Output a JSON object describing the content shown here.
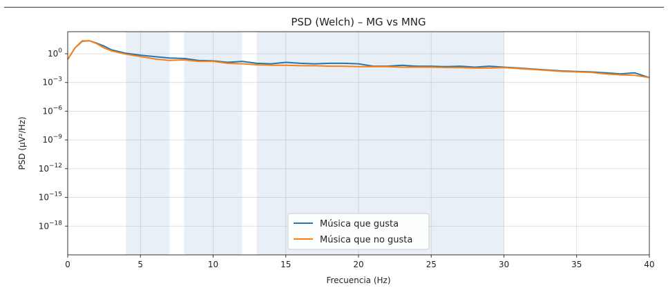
{
  "chart_data": {
    "type": "line",
    "title": "PSD (Welch) – MG vs MNG",
    "xlabel": "Frecuencia (Hz)",
    "ylabel": "PSD (μV²/Hz)",
    "xlim": [
      0,
      40
    ],
    "ylim_log10": [
      -21,
      2.3
    ],
    "y_scale": "log",
    "grid": true,
    "legend_position": "lower-center",
    "x_ticks": [
      {
        "value": 0,
        "label": "0"
      },
      {
        "value": 5,
        "label": "5"
      },
      {
        "value": 10,
        "label": "10"
      },
      {
        "value": 15,
        "label": "15"
      },
      {
        "value": 20,
        "label": "20"
      },
      {
        "value": 25,
        "label": "25"
      },
      {
        "value": 30,
        "label": "30"
      },
      {
        "value": 35,
        "label": "35"
      },
      {
        "value": 40,
        "label": "40"
      }
    ],
    "y_ticks": [
      {
        "exp": 0,
        "base": "10",
        "sup": "0"
      },
      {
        "exp": -3,
        "base": "10",
        "sup": "−3"
      },
      {
        "exp": -6,
        "base": "10",
        "sup": "−6"
      },
      {
        "exp": -9,
        "base": "10",
        "sup": "−9"
      },
      {
        "exp": -12,
        "base": "10",
        "sup": "−12"
      },
      {
        "exp": -15,
        "base": "10",
        "sup": "−15"
      },
      {
        "exp": -18,
        "base": "10",
        "sup": "−18"
      }
    ],
    "shaded_bands": [
      {
        "x0": 4,
        "x1": 7
      },
      {
        "x0": 8,
        "x1": 12
      },
      {
        "x0": 13,
        "x1": 30
      }
    ],
    "series": [
      {
        "name": "Música que gusta",
        "color": "#1f77b4",
        "x": [
          0,
          0.5,
          1,
          1.5,
          2,
          2.5,
          3,
          4,
          5,
          6,
          7,
          8,
          9,
          10,
          11,
          12,
          13,
          14,
          15,
          16,
          17,
          18,
          19,
          20,
          21,
          22,
          23,
          24,
          25,
          26,
          27,
          28,
          29,
          30,
          31,
          32,
          33,
          34,
          35,
          36,
          37,
          38,
          39,
          40
        ],
        "y_log10": [
          -0.6,
          0.6,
          1.3,
          1.35,
          1.1,
          0.8,
          0.4,
          0.05,
          -0.15,
          -0.3,
          -0.45,
          -0.5,
          -0.7,
          -0.75,
          -0.9,
          -0.8,
          -1.0,
          -1.05,
          -0.9,
          -1.0,
          -1.05,
          -1.0,
          -1.0,
          -1.05,
          -1.3,
          -1.3,
          -1.2,
          -1.3,
          -1.3,
          -1.35,
          -1.3,
          -1.4,
          -1.3,
          -1.4,
          -1.5,
          -1.6,
          -1.7,
          -1.8,
          -1.85,
          -1.9,
          -2.0,
          -2.1,
          -2.0,
          -2.5
        ]
      },
      {
        "name": "Música que no gusta",
        "color": "#ff7f0e",
        "x": [
          0,
          0.5,
          1,
          1.5,
          2,
          2.5,
          3,
          4,
          5,
          6,
          7,
          8,
          9,
          10,
          11,
          12,
          13,
          14,
          15,
          16,
          17,
          18,
          19,
          20,
          21,
          22,
          23,
          24,
          25,
          26,
          27,
          28,
          29,
          30,
          31,
          32,
          33,
          34,
          35,
          36,
          37,
          38,
          39,
          40
        ],
        "y_log10": [
          -0.6,
          0.6,
          1.35,
          1.35,
          1.05,
          0.6,
          0.3,
          -0.05,
          -0.3,
          -0.55,
          -0.7,
          -0.65,
          -0.8,
          -0.8,
          -1.0,
          -1.05,
          -1.15,
          -1.2,
          -1.2,
          -1.25,
          -1.25,
          -1.3,
          -1.3,
          -1.35,
          -1.35,
          -1.35,
          -1.4,
          -1.4,
          -1.4,
          -1.45,
          -1.45,
          -1.5,
          -1.5,
          -1.45,
          -1.55,
          -1.65,
          -1.75,
          -1.85,
          -1.9,
          -1.95,
          -2.1,
          -2.2,
          -2.25,
          -2.5
        ]
      }
    ]
  }
}
